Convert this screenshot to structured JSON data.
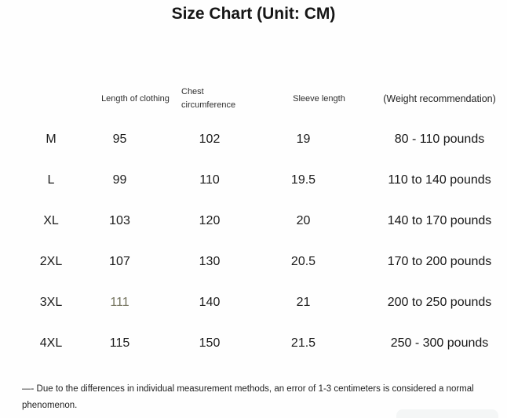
{
  "title": "Size Chart (Unit: CM)",
  "table": {
    "headers": {
      "size": "",
      "length": "Length of clothing",
      "chest": "Chest circumference",
      "sleeve": "Sleeve length",
      "weight": "(Weight recommendation)"
    },
    "rows": [
      {
        "size": "M",
        "length": "95",
        "chest": "102",
        "sleeve": "19",
        "weight": "80 - 110 pounds"
      },
      {
        "size": "L",
        "length": "99",
        "chest": "110",
        "sleeve": "19.5",
        "weight": "110 to 140 pounds"
      },
      {
        "size": "XL",
        "length": "103",
        "chest": "120",
        "sleeve": "20",
        "weight": "140 to 170 pounds"
      },
      {
        "size": "2XL",
        "length": "107",
        "chest": "130",
        "sleeve": "20.5",
        "weight": "170 to 200 pounds"
      },
      {
        "size": "3XL",
        "length": "111",
        "chest": "140",
        "sleeve": "21",
        "weight": "200 to 250 pounds"
      },
      {
        "size": "4XL",
        "length": "115",
        "chest": "150",
        "sleeve": "21.5",
        "weight": "250 - 300 pounds"
      }
    ]
  },
  "note": "—- Due to the differences in individual measurement methods, an error of 1-3 centimeters is considered a normal phenomenon.",
  "colors": {
    "text": "#1b1b1b",
    "highlight_value": "#74735e",
    "background": "#fefefe"
  }
}
